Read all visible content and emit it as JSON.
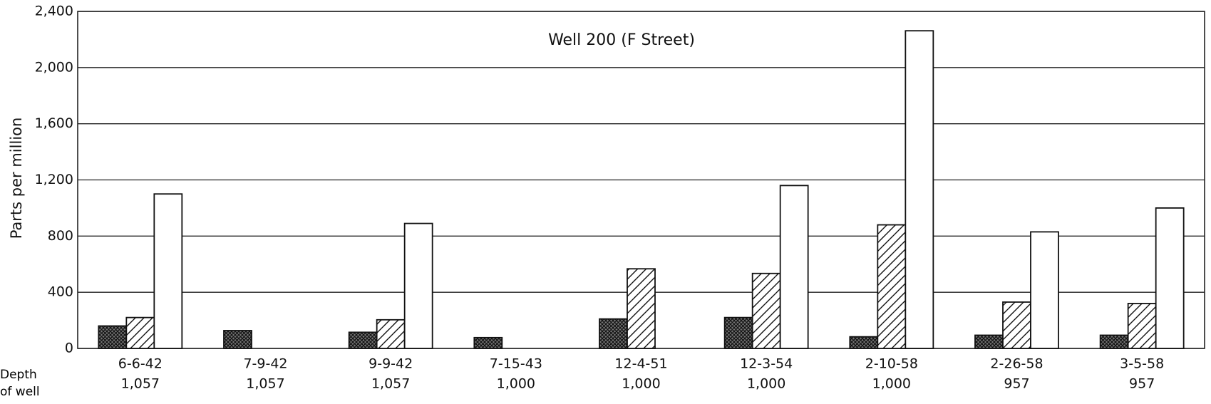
{
  "chart_data": {
    "type": "bar",
    "title": "Well 200  (F Street)",
    "y_label": "Parts per million",
    "x_label": "Depth of well (feet)",
    "categories": [
      "6-6-42",
      "7-9-42",
      "9-9-42",
      "7-15-43",
      "12-4-51",
      "12-3-54",
      "2-10-58",
      "2-26-58",
      "3-5-58"
    ],
    "depths": [
      "1,057",
      "1,057",
      "1,057",
      "1,000",
      "1,000",
      "1,000",
      "1,000",
      "957",
      "957"
    ],
    "series": [
      {
        "pattern": "crosshatch",
        "values": [
          160,
          127,
          115,
          77,
          210,
          220,
          83,
          94,
          94
        ]
      },
      {
        "pattern": "diagonal",
        "values": [
          220,
          null,
          204,
          null,
          567,
          534,
          880,
          330,
          320
        ]
      },
      {
        "pattern": "none",
        "values": [
          1100,
          null,
          890,
          null,
          null,
          1160,
          2262,
          830,
          1000
        ]
      }
    ],
    "ylim": [
      0,
      2400
    ],
    "yticks": [
      0,
      400,
      800,
      {
        "value": 1200,
        "label": "1,200"
      },
      {
        "value": 1600,
        "label": "1,600"
      },
      {
        "value": 2000,
        "label": "2,000"
      },
      {
        "value": 2400,
        "label": "2,400"
      }
    ],
    "grid": true
  }
}
